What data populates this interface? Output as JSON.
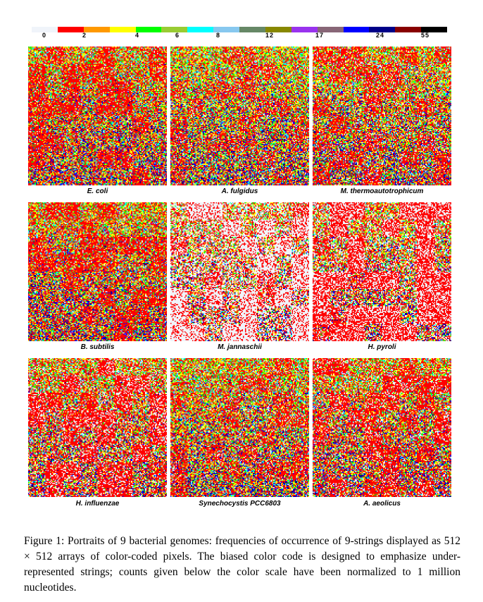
{
  "color_scale": {
    "colors": [
      "#f0f4fa",
      "#ff0000",
      "#ff9900",
      "#ffff00",
      "#00ff00",
      "#99cc33",
      "#00ffff",
      "#87c8ef",
      "#668866",
      "#888800",
      "#9933ee",
      "#886677",
      "#0000ff",
      "#000088",
      "#880000",
      "#000000"
    ],
    "labels": [
      "0",
      "2",
      "4",
      "6",
      "8",
      "12",
      "17",
      "24",
      "55"
    ]
  },
  "panels": [
    {
      "label": "E. coli"
    },
    {
      "label": "A. fulgidus"
    },
    {
      "label": "M. thermoautotrophicum"
    },
    {
      "label": "B. subtilis"
    },
    {
      "label": "M. jannaschii"
    },
    {
      "label": "H. pyroli"
    },
    {
      "label": "H. influenzae"
    },
    {
      "label": "Synechocystis PCC6803"
    },
    {
      "label": "A. aeolicus"
    }
  ],
  "caption": "Figure 1:  Portraits of 9 bacterial genomes:  frequencies of occurrence of 9-strings displayed as 512 × 512 arrays of color-coded pixels.  The biased color code is designed to emphasize under-represented strings; counts given below the color scale have been normalized to 1 million nucleotides."
}
